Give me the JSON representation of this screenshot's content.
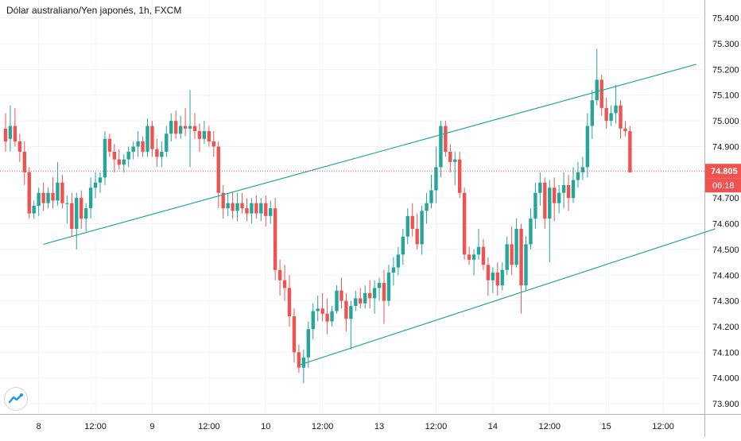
{
  "title": "Dólar australiano/Yen japonés, 1h, FXCM",
  "colors": {
    "up": "#26a69a",
    "down": "#ef5350",
    "trend": "#26a69a",
    "grid": "#f0f3fa",
    "axis": "#131722",
    "last": "#ef5350"
  },
  "logo_icon": "tradingview-logo-icon",
  "chart_data": {
    "type": "candlestick",
    "title": "Dólar australiano/Yen japonés, 1h, FXCM",
    "ylim": [
      73.86,
      75.47
    ],
    "yticks": [
      "75.400",
      "75.300",
      "75.200",
      "75.100",
      "75.000",
      "74.900",
      "74.800",
      "74.700",
      "74.600",
      "74.500",
      "74.400",
      "74.300",
      "74.200",
      "74.100",
      "74.000",
      "73.900"
    ],
    "yticks_num": [
      75.4,
      75.3,
      75.2,
      75.1,
      75.0,
      74.9,
      74.8,
      74.7,
      74.6,
      74.5,
      74.4,
      74.3,
      74.2,
      74.1,
      74.0,
      73.9
    ],
    "xticks": [
      "8",
      "12:00",
      "9",
      "12:00",
      "10",
      "12:00",
      "13",
      "12:00",
      "14",
      "12:00",
      "15",
      "12:00"
    ],
    "xtick_index": [
      7,
      19,
      31,
      43,
      55,
      67,
      79,
      91,
      103,
      115,
      127,
      139
    ],
    "last_price": "74.805",
    "countdown": "06:18",
    "grid": true,
    "candles": [
      [
        74.97,
        75.03,
        74.88,
        74.92
      ],
      [
        74.93,
        75.06,
        74.88,
        74.98
      ],
      [
        74.98,
        75.05,
        74.9,
        74.92
      ],
      [
        74.92,
        74.95,
        74.84,
        74.88
      ],
      [
        74.88,
        74.92,
        74.75,
        74.8
      ],
      [
        74.8,
        74.82,
        74.62,
        74.64
      ],
      [
        74.64,
        74.69,
        74.62,
        74.67
      ],
      [
        74.67,
        74.74,
        74.63,
        74.72
      ],
      [
        74.72,
        74.76,
        74.65,
        74.68
      ],
      [
        74.68,
        74.74,
        74.66,
        74.72
      ],
      [
        74.72,
        74.78,
        74.66,
        74.69
      ],
      [
        74.69,
        74.84,
        74.67,
        74.76
      ],
      [
        74.76,
        74.79,
        74.66,
        74.68
      ],
      [
        74.68,
        74.71,
        74.6,
        74.68
      ],
      [
        74.68,
        74.72,
        74.55,
        74.58
      ],
      [
        74.58,
        74.72,
        74.5,
        74.7
      ],
      [
        74.7,
        74.73,
        74.58,
        74.62
      ],
      [
        74.62,
        74.68,
        74.57,
        74.66
      ],
      [
        74.66,
        74.78,
        74.62,
        74.74
      ],
      [
        74.74,
        74.8,
        74.7,
        74.76
      ],
      [
        74.76,
        74.8,
        74.72,
        74.78
      ],
      [
        74.78,
        74.96,
        74.75,
        74.93
      ],
      [
        74.93,
        74.95,
        74.86,
        74.88
      ],
      [
        74.88,
        74.91,
        74.8,
        74.85
      ],
      [
        74.85,
        74.89,
        74.81,
        74.83
      ],
      [
        74.83,
        74.87,
        74.8,
        74.85
      ],
      [
        74.85,
        74.9,
        74.82,
        74.88
      ],
      [
        74.88,
        74.92,
        74.85,
        74.9
      ],
      [
        74.9,
        74.96,
        74.86,
        74.92
      ],
      [
        74.92,
        74.94,
        74.86,
        74.88
      ],
      [
        74.88,
        75.01,
        74.86,
        74.98
      ],
      [
        74.98,
        75.0,
        74.86,
        74.89
      ],
      [
        74.89,
        74.93,
        74.82,
        74.86
      ],
      [
        74.86,
        74.92,
        74.82,
        74.88
      ],
      [
        74.88,
        74.98,
        74.86,
        74.95
      ],
      [
        74.95,
        75.03,
        74.92,
        75.0
      ],
      [
        75.0,
        75.04,
        74.93,
        74.95
      ],
      [
        74.95,
        75.02,
        74.93,
        74.98
      ],
      [
        74.98,
        75.05,
        74.94,
        74.97
      ],
      [
        74.97,
        75.12,
        74.82,
        74.98
      ],
      [
        74.98,
        75.03,
        74.93,
        74.96
      ],
      [
        74.96,
        74.99,
        74.88,
        74.93
      ],
      [
        74.93,
        75.0,
        74.91,
        74.96
      ],
      [
        74.96,
        74.98,
        74.9,
        74.92
      ],
      [
        74.92,
        74.96,
        74.86,
        74.9
      ],
      [
        74.9,
        74.92,
        74.66,
        74.72
      ],
      [
        74.72,
        74.75,
        74.62,
        74.66
      ],
      [
        74.66,
        74.72,
        74.63,
        74.68
      ],
      [
        74.68,
        74.72,
        74.62,
        74.65
      ],
      [
        74.65,
        74.72,
        74.61,
        74.68
      ],
      [
        74.68,
        74.72,
        74.64,
        74.66
      ],
      [
        74.66,
        74.7,
        74.61,
        74.64
      ],
      [
        74.64,
        74.7,
        74.6,
        74.68
      ],
      [
        74.68,
        74.71,
        74.62,
        74.64
      ],
      [
        74.64,
        74.7,
        74.61,
        74.68
      ],
      [
        74.68,
        74.71,
        74.59,
        74.63
      ],
      [
        74.63,
        74.69,
        74.6,
        74.66
      ],
      [
        74.66,
        74.7,
        74.38,
        74.42
      ],
      [
        74.42,
        74.46,
        74.32,
        74.38
      ],
      [
        74.38,
        74.44,
        74.3,
        74.35
      ],
      [
        74.35,
        74.4,
        74.2,
        74.24
      ],
      [
        74.24,
        74.27,
        74.06,
        74.1
      ],
      [
        74.1,
        74.13,
        74.02,
        74.04
      ],
      [
        74.04,
        74.11,
        73.98,
        74.08
      ],
      [
        74.08,
        74.22,
        74.04,
        74.19
      ],
      [
        74.19,
        74.29,
        74.15,
        74.26
      ],
      [
        74.26,
        74.32,
        74.22,
        74.27
      ],
      [
        74.27,
        74.33,
        74.22,
        74.25
      ],
      [
        74.25,
        74.31,
        74.17,
        74.22
      ],
      [
        74.22,
        74.28,
        74.2,
        74.26
      ],
      [
        74.26,
        74.36,
        74.25,
        74.34
      ],
      [
        74.34,
        74.39,
        74.27,
        74.3
      ],
      [
        74.3,
        74.33,
        74.18,
        74.23
      ],
      [
        74.23,
        74.3,
        74.11,
        74.28
      ],
      [
        74.28,
        74.34,
        74.26,
        74.31
      ],
      [
        74.31,
        74.35,
        74.27,
        74.29
      ],
      [
        74.29,
        74.36,
        74.27,
        74.33
      ],
      [
        74.33,
        74.38,
        74.27,
        74.31
      ],
      [
        74.31,
        74.38,
        74.25,
        74.35
      ],
      [
        74.35,
        74.39,
        74.3,
        74.37
      ],
      [
        74.37,
        74.42,
        74.21,
        74.3
      ],
      [
        74.3,
        74.44,
        74.28,
        74.41
      ],
      [
        74.41,
        74.47,
        74.36,
        74.43
      ],
      [
        74.43,
        74.51,
        74.4,
        74.48
      ],
      [
        74.48,
        74.58,
        74.44,
        74.55
      ],
      [
        74.55,
        74.66,
        74.52,
        74.63
      ],
      [
        74.63,
        74.68,
        74.55,
        74.58
      ],
      [
        74.58,
        74.64,
        74.5,
        74.52
      ],
      [
        74.52,
        74.67,
        74.48,
        74.65
      ],
      [
        74.65,
        74.72,
        74.6,
        74.68
      ],
      [
        74.68,
        74.79,
        74.66,
        74.73
      ],
      [
        74.73,
        74.9,
        74.68,
        74.82
      ],
      [
        74.82,
        75.0,
        74.78,
        74.98
      ],
      [
        74.98,
        75.0,
        74.86,
        74.88
      ],
      [
        74.88,
        74.91,
        74.8,
        74.84
      ],
      [
        74.84,
        74.88,
        74.75,
        74.85
      ],
      [
        74.85,
        74.88,
        74.7,
        74.72
      ],
      [
        74.72,
        74.74,
        74.46,
        74.48
      ],
      [
        74.48,
        74.51,
        74.44,
        74.46
      ],
      [
        74.46,
        74.5,
        74.4,
        74.48
      ],
      [
        74.48,
        74.58,
        74.46,
        74.51
      ],
      [
        74.51,
        74.54,
        74.42,
        74.44
      ],
      [
        74.44,
        74.47,
        74.32,
        74.38
      ],
      [
        74.38,
        74.43,
        74.33,
        74.41
      ],
      [
        74.41,
        74.45,
        74.32,
        74.36
      ],
      [
        74.36,
        74.45,
        74.34,
        74.42
      ],
      [
        74.42,
        74.55,
        74.4,
        74.52
      ],
      [
        74.52,
        74.59,
        74.4,
        74.44
      ],
      [
        74.44,
        74.62,
        74.43,
        74.58
      ],
      [
        74.58,
        74.6,
        74.25,
        74.36
      ],
      [
        74.36,
        74.55,
        74.34,
        74.52
      ],
      [
        74.52,
        74.66,
        74.5,
        74.62
      ],
      [
        74.62,
        74.76,
        74.58,
        74.72
      ],
      [
        74.72,
        74.8,
        74.67,
        74.76
      ],
      [
        74.76,
        74.78,
        74.58,
        74.62
      ],
      [
        74.62,
        74.77,
        74.45,
        74.74
      ],
      [
        74.74,
        74.78,
        74.61,
        74.68
      ],
      [
        74.68,
        74.75,
        74.64,
        74.72
      ],
      [
        74.72,
        74.8,
        74.66,
        74.75
      ],
      [
        74.75,
        74.79,
        74.65,
        74.7
      ],
      [
        74.7,
        74.82,
        74.68,
        74.77
      ],
      [
        74.77,
        74.84,
        74.74,
        74.8
      ],
      [
        74.8,
        74.86,
        74.77,
        74.82
      ],
      [
        74.82,
        75.03,
        74.78,
        74.98
      ],
      [
        74.98,
        75.12,
        74.93,
        75.08
      ],
      [
        75.08,
        75.28,
        75.06,
        75.16
      ],
      [
        75.16,
        75.18,
        75.02,
        75.05
      ],
      [
        75.05,
        75.09,
        74.97,
        75.0
      ],
      [
        75.0,
        75.06,
        74.98,
        75.03
      ],
      [
        75.03,
        75.14,
        74.99,
        75.06
      ],
      [
        75.06,
        75.08,
        74.93,
        74.97
      ],
      [
        74.97,
        75.0,
        74.94,
        74.96
      ],
      [
        74.96,
        74.98,
        74.8,
        74.8
      ]
    ],
    "trendlines": [
      {
        "from": [
          8,
          74.52
        ],
        "to": [
          146,
          75.22
        ]
      },
      {
        "from": [
          62,
          74.05
        ],
        "to": [
          150,
          74.58
        ]
      }
    ]
  }
}
